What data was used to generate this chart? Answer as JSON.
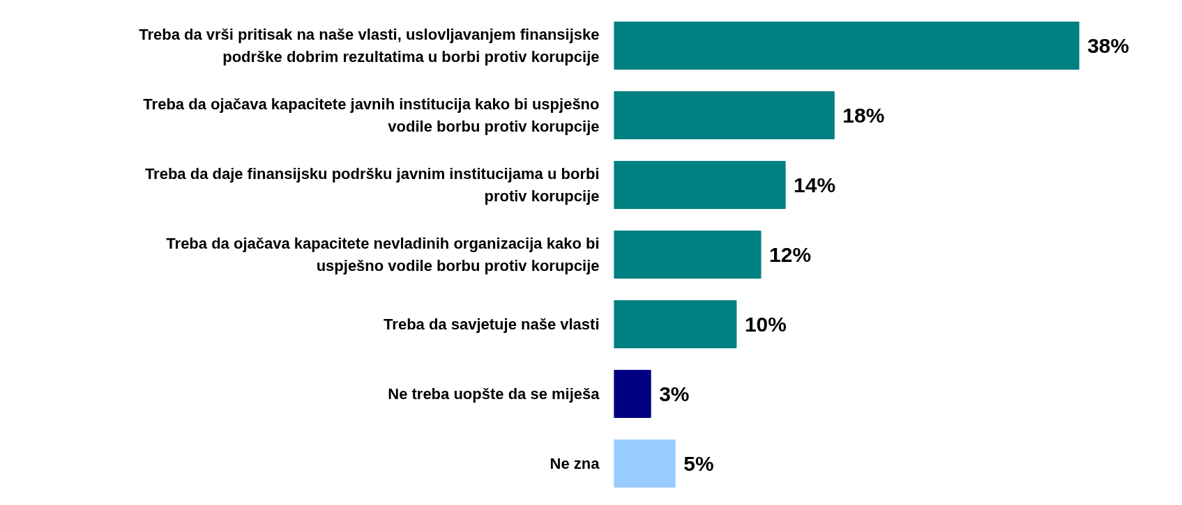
{
  "chart_data": {
    "type": "bar",
    "orientation": "horizontal",
    "categories": [
      "Treba da vrši pritisak na naše vlasti, uslovljavanjem finansijske podrške dobrim rezultatima u borbi protiv korupcije",
      "Treba da ojačava kapacitete javnih institucija kako bi uspješno vodile borbu protiv korupcije",
      "Treba da daje finansijsku podršku javnim institucijama u borbi protiv korupcije",
      "Treba da ojačava kapacitete nevladinih organizacija kako bi uspješno vodile borbu protiv korupcije",
      "Treba da savjetuje naše vlasti",
      "Ne treba uopšte da se miješa",
      "Ne zna"
    ],
    "values": [
      38,
      18,
      14,
      12,
      10,
      3,
      5
    ],
    "colors": [
      "#008080",
      "#008080",
      "#008080",
      "#008080",
      "#008080",
      "#000080",
      "#99ccff"
    ],
    "value_labels": [
      "38%",
      "18%",
      "14%",
      "12%",
      "10%",
      "3%",
      "5%"
    ],
    "tick_labels": "y",
    "grid": false
  }
}
